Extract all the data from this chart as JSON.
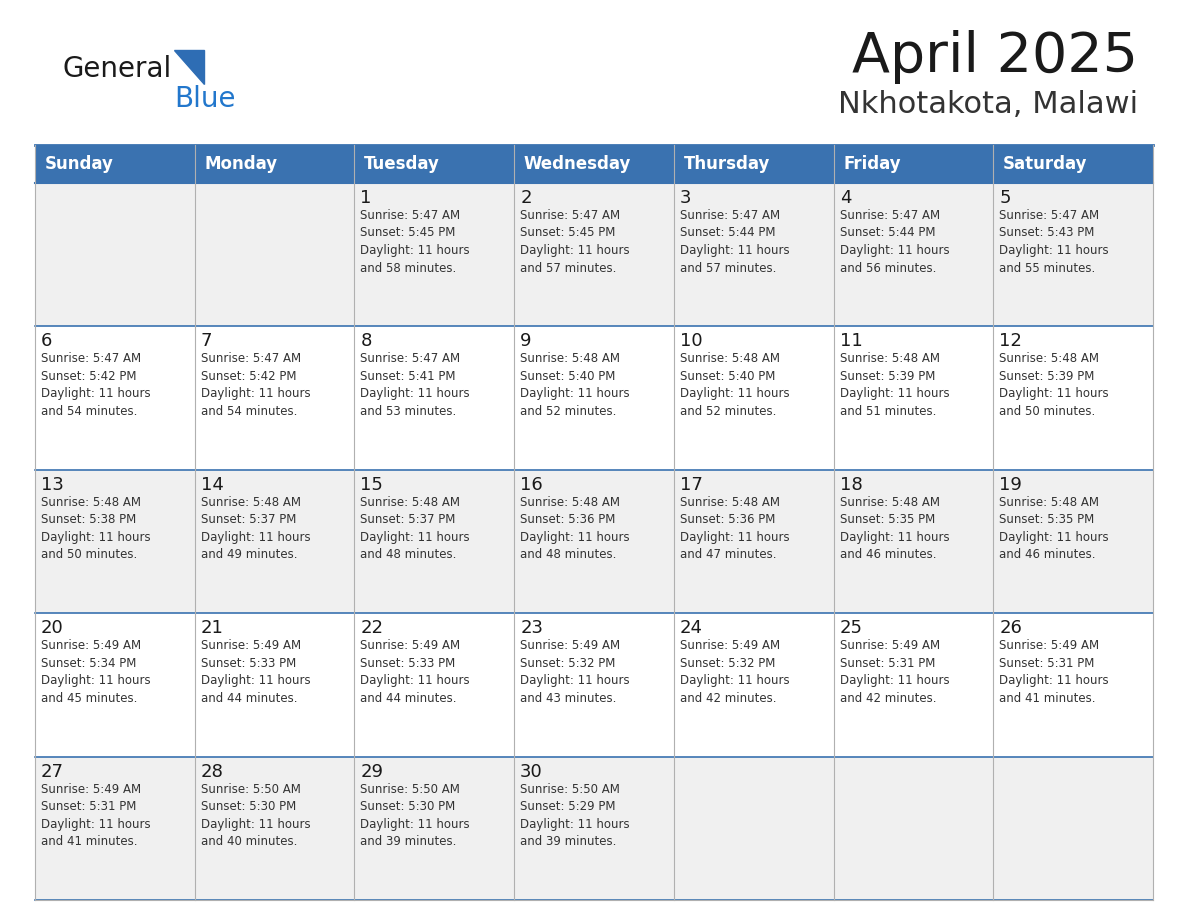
{
  "title": "April 2025",
  "subtitle": "Nkhotakota, Malawi",
  "header_bg": "#3A72B0",
  "header_text_color": "#FFFFFF",
  "cell_bg_even": "#FFFFFF",
  "cell_bg_odd": "#F0F0F0",
  "border_color": "#3A72B0",
  "grid_line_color": "#B0B0B0",
  "day_names": [
    "Sunday",
    "Monday",
    "Tuesday",
    "Wednesday",
    "Thursday",
    "Friday",
    "Saturday"
  ],
  "days_data": [
    {
      "day": "",
      "col": 0,
      "row": 0,
      "info": ""
    },
    {
      "day": "",
      "col": 1,
      "row": 0,
      "info": ""
    },
    {
      "day": "1",
      "col": 2,
      "row": 0,
      "info": "Sunrise: 5:47 AM\nSunset: 5:45 PM\nDaylight: 11 hours\nand 58 minutes."
    },
    {
      "day": "2",
      "col": 3,
      "row": 0,
      "info": "Sunrise: 5:47 AM\nSunset: 5:45 PM\nDaylight: 11 hours\nand 57 minutes."
    },
    {
      "day": "3",
      "col": 4,
      "row": 0,
      "info": "Sunrise: 5:47 AM\nSunset: 5:44 PM\nDaylight: 11 hours\nand 57 minutes."
    },
    {
      "day": "4",
      "col": 5,
      "row": 0,
      "info": "Sunrise: 5:47 AM\nSunset: 5:44 PM\nDaylight: 11 hours\nand 56 minutes."
    },
    {
      "day": "5",
      "col": 6,
      "row": 0,
      "info": "Sunrise: 5:47 AM\nSunset: 5:43 PM\nDaylight: 11 hours\nand 55 minutes."
    },
    {
      "day": "6",
      "col": 0,
      "row": 1,
      "info": "Sunrise: 5:47 AM\nSunset: 5:42 PM\nDaylight: 11 hours\nand 54 minutes."
    },
    {
      "day": "7",
      "col": 1,
      "row": 1,
      "info": "Sunrise: 5:47 AM\nSunset: 5:42 PM\nDaylight: 11 hours\nand 54 minutes."
    },
    {
      "day": "8",
      "col": 2,
      "row": 1,
      "info": "Sunrise: 5:47 AM\nSunset: 5:41 PM\nDaylight: 11 hours\nand 53 minutes."
    },
    {
      "day": "9",
      "col": 3,
      "row": 1,
      "info": "Sunrise: 5:48 AM\nSunset: 5:40 PM\nDaylight: 11 hours\nand 52 minutes."
    },
    {
      "day": "10",
      "col": 4,
      "row": 1,
      "info": "Sunrise: 5:48 AM\nSunset: 5:40 PM\nDaylight: 11 hours\nand 52 minutes."
    },
    {
      "day": "11",
      "col": 5,
      "row": 1,
      "info": "Sunrise: 5:48 AM\nSunset: 5:39 PM\nDaylight: 11 hours\nand 51 minutes."
    },
    {
      "day": "12",
      "col": 6,
      "row": 1,
      "info": "Sunrise: 5:48 AM\nSunset: 5:39 PM\nDaylight: 11 hours\nand 50 minutes."
    },
    {
      "day": "13",
      "col": 0,
      "row": 2,
      "info": "Sunrise: 5:48 AM\nSunset: 5:38 PM\nDaylight: 11 hours\nand 50 minutes."
    },
    {
      "day": "14",
      "col": 1,
      "row": 2,
      "info": "Sunrise: 5:48 AM\nSunset: 5:37 PM\nDaylight: 11 hours\nand 49 minutes."
    },
    {
      "day": "15",
      "col": 2,
      "row": 2,
      "info": "Sunrise: 5:48 AM\nSunset: 5:37 PM\nDaylight: 11 hours\nand 48 minutes."
    },
    {
      "day": "16",
      "col": 3,
      "row": 2,
      "info": "Sunrise: 5:48 AM\nSunset: 5:36 PM\nDaylight: 11 hours\nand 48 minutes."
    },
    {
      "day": "17",
      "col": 4,
      "row": 2,
      "info": "Sunrise: 5:48 AM\nSunset: 5:36 PM\nDaylight: 11 hours\nand 47 minutes."
    },
    {
      "day": "18",
      "col": 5,
      "row": 2,
      "info": "Sunrise: 5:48 AM\nSunset: 5:35 PM\nDaylight: 11 hours\nand 46 minutes."
    },
    {
      "day": "19",
      "col": 6,
      "row": 2,
      "info": "Sunrise: 5:48 AM\nSunset: 5:35 PM\nDaylight: 11 hours\nand 46 minutes."
    },
    {
      "day": "20",
      "col": 0,
      "row": 3,
      "info": "Sunrise: 5:49 AM\nSunset: 5:34 PM\nDaylight: 11 hours\nand 45 minutes."
    },
    {
      "day": "21",
      "col": 1,
      "row": 3,
      "info": "Sunrise: 5:49 AM\nSunset: 5:33 PM\nDaylight: 11 hours\nand 44 minutes."
    },
    {
      "day": "22",
      "col": 2,
      "row": 3,
      "info": "Sunrise: 5:49 AM\nSunset: 5:33 PM\nDaylight: 11 hours\nand 44 minutes."
    },
    {
      "day": "23",
      "col": 3,
      "row": 3,
      "info": "Sunrise: 5:49 AM\nSunset: 5:32 PM\nDaylight: 11 hours\nand 43 minutes."
    },
    {
      "day": "24",
      "col": 4,
      "row": 3,
      "info": "Sunrise: 5:49 AM\nSunset: 5:32 PM\nDaylight: 11 hours\nand 42 minutes."
    },
    {
      "day": "25",
      "col": 5,
      "row": 3,
      "info": "Sunrise: 5:49 AM\nSunset: 5:31 PM\nDaylight: 11 hours\nand 42 minutes."
    },
    {
      "day": "26",
      "col": 6,
      "row": 3,
      "info": "Sunrise: 5:49 AM\nSunset: 5:31 PM\nDaylight: 11 hours\nand 41 minutes."
    },
    {
      "day": "27",
      "col": 0,
      "row": 4,
      "info": "Sunrise: 5:49 AM\nSunset: 5:31 PM\nDaylight: 11 hours\nand 41 minutes."
    },
    {
      "day": "28",
      "col": 1,
      "row": 4,
      "info": "Sunrise: 5:50 AM\nSunset: 5:30 PM\nDaylight: 11 hours\nand 40 minutes."
    },
    {
      "day": "29",
      "col": 2,
      "row": 4,
      "info": "Sunrise: 5:50 AM\nSunset: 5:30 PM\nDaylight: 11 hours\nand 39 minutes."
    },
    {
      "day": "30",
      "col": 3,
      "row": 4,
      "info": "Sunrise: 5:50 AM\nSunset: 5:29 PM\nDaylight: 11 hours\nand 39 minutes."
    },
    {
      "day": "",
      "col": 4,
      "row": 4,
      "info": ""
    },
    {
      "day": "",
      "col": 5,
      "row": 4,
      "info": ""
    },
    {
      "day": "",
      "col": 6,
      "row": 4,
      "info": ""
    }
  ],
  "logo_text1": "General",
  "logo_text2": "Blue",
  "logo_color1": "#1a1a1a",
  "logo_color2": "#2277CC",
  "logo_triangle_color": "#2E6DB4"
}
